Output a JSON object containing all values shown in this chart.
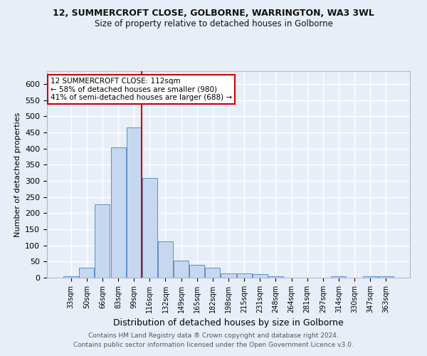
{
  "title1": "12, SUMMERCROFT CLOSE, GOLBORNE, WARRINGTON, WA3 3WL",
  "title2": "Size of property relative to detached houses in Golborne",
  "xlabel": "Distribution of detached houses by size in Golborne",
  "ylabel": "Number of detached properties",
  "bins": [
    "33sqm",
    "50sqm",
    "66sqm",
    "83sqm",
    "99sqm",
    "116sqm",
    "132sqm",
    "149sqm",
    "165sqm",
    "182sqm",
    "198sqm",
    "215sqm",
    "231sqm",
    "248sqm",
    "264sqm",
    "281sqm",
    "297sqm",
    "314sqm",
    "330sqm",
    "347sqm",
    "363sqm"
  ],
  "counts": [
    5,
    32,
    228,
    403,
    465,
    308,
    112,
    54,
    40,
    30,
    14,
    14,
    10,
    5,
    0,
    0,
    0,
    4,
    0,
    4,
    4
  ],
  "bar_color": "#c5d8f0",
  "bar_edge_color": "#5b8fc9",
  "vline_x": 4.5,
  "vline_color": "#cc0000",
  "annotation_text": "12 SUMMERCROFT CLOSE: 112sqm\n← 58% of detached houses are smaller (980)\n41% of semi-detached houses are larger (688) →",
  "annotation_box_color": "white",
  "annotation_box_edge": "#cc0000",
  "footer1": "Contains HM Land Registry data ® Crown copyright and database right 2024.",
  "footer2": "Contains public sector information licensed under the Open Government Licence v3.0.",
  "ylim": [
    0,
    640
  ],
  "yticks": [
    0,
    50,
    100,
    150,
    200,
    250,
    300,
    350,
    400,
    450,
    500,
    550,
    600
  ],
  "bg_color": "#e8eef8",
  "grid_color": "white",
  "title1_fontsize": 9.0,
  "title2_fontsize": 8.5
}
